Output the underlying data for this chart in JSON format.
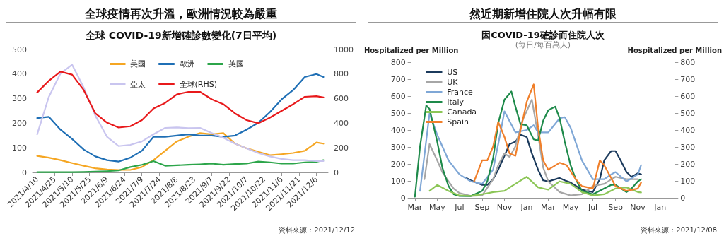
{
  "chart_data": [
    {
      "type": "line",
      "title": "全球疫情再次升溫，歐洲情況較為嚴重",
      "subtitle": "全球 COVID-19新增確診數變化(7日平均)",
      "annotations": [
        "資料來源：2021/12/12"
      ],
      "legend": "top",
      "xlim": [
        "2021-04-06",
        "2021-12-16"
      ],
      "xticks": [
        {
          "value": "2021-04-10",
          "label": "2021/4/10"
        },
        {
          "value": "2021-04-25",
          "label": "2021/4/25"
        },
        {
          "value": "2021-05-10",
          "label": "2021/5/10"
        },
        {
          "value": "2021-05-25",
          "label": "2021/5/25"
        },
        {
          "value": "2021-06-09",
          "label": "2021/6/9"
        },
        {
          "value": "2021-06-24",
          "label": "2021/6/24"
        },
        {
          "value": "2021-07-09",
          "label": "2021/7/9"
        },
        {
          "value": "2021-07-24",
          "label": "2021/7/24"
        },
        {
          "value": "2021-08-08",
          "label": "2021/8/8"
        },
        {
          "value": "2021-08-23",
          "label": "2021/8/23"
        },
        {
          "value": "2021-09-07",
          "label": "2021/9/7"
        },
        {
          "value": "2021-09-22",
          "label": "2021/9/22"
        },
        {
          "value": "2021-10-07",
          "label": "2021/10/7"
        },
        {
          "value": "2021-10-22",
          "label": "2021/10/22"
        },
        {
          "value": "2021-11-06",
          "label": "2021/11/6"
        },
        {
          "value": "2021-11-21",
          "label": "2021/11/21"
        },
        {
          "value": "2021-12-06",
          "label": "2021/12/6"
        }
      ],
      "ylim": [
        0,
        500
      ],
      "yticks": [
        0,
        100,
        200,
        300,
        400,
        500
      ],
      "y2lim": [
        0,
        1000
      ],
      "y2ticks": [
        0,
        200,
        400,
        600,
        800,
        1000
      ],
      "x": [
        "2021-04-10",
        "2021-04-20",
        "2021-04-30",
        "2021-05-10",
        "2021-05-20",
        "2021-05-30",
        "2021-06-09",
        "2021-06-19",
        "2021-06-29",
        "2021-07-09",
        "2021-07-19",
        "2021-07-29",
        "2021-08-08",
        "2021-08-18",
        "2021-08-28",
        "2021-09-07",
        "2021-09-17",
        "2021-09-27",
        "2021-10-07",
        "2021-10-17",
        "2021-10-27",
        "2021-11-06",
        "2021-11-16",
        "2021-11-26",
        "2021-12-06",
        "2021-12-12"
      ],
      "series": [
        {
          "name": "美國",
          "color": "#f5a623",
          "values": [
            67,
            60,
            50,
            38,
            27,
            17,
            12,
            10,
            10,
            22,
            50,
            88,
            126,
            145,
            160,
            155,
            160,
            117,
            98,
            84,
            70,
            74,
            79,
            88,
            122,
            117
          ]
        },
        {
          "name": "歐洲",
          "color": "#1f6fb5",
          "values": [
            221,
            226,
            174,
            136,
            93,
            65,
            50,
            44,
            60,
            88,
            145,
            145,
            150,
            155,
            150,
            150,
            145,
            150,
            174,
            202,
            245,
            297,
            335,
            388,
            400,
            388
          ]
        },
        {
          "name": "英國",
          "color": "#2ca54a",
          "values": [
            1,
            1,
            1,
            1,
            2,
            3,
            5,
            8,
            22,
            31,
            46,
            27,
            29,
            31,
            33,
            36,
            31,
            34,
            36,
            44,
            41,
            36,
            36,
            41,
            43,
            50
          ]
        },
        {
          "name": "亞太",
          "color": "#c9c5ef",
          "values": [
            155,
            307,
            402,
            438,
            345,
            231,
            145,
            107,
            112,
            126,
            155,
            181,
            183,
            180,
            181,
            160,
            141,
            117,
            98,
            79,
            65,
            55,
            50,
            50,
            46,
            46
          ]
        },
        {
          "name": "全球(RHS)",
          "color": "#e8191b",
          "axis": "y2",
          "values": [
            650,
            745,
            820,
            795,
            670,
            480,
            405,
            365,
            375,
            425,
            520,
            565,
            635,
            655,
            655,
            595,
            555,
            480,
            425,
            400,
            445,
            500,
            555,
            615,
            620,
            610
          ]
        }
      ]
    },
    {
      "type": "line",
      "title": "然近期新增住院人次升幅有限",
      "subtitle": "因COVID-19確診而住院人次",
      "annotations": [
        "(每日/每百萬人)",
        "資料來源：2021/12/08"
      ],
      "ylabel": "Hospitalized per Million",
      "y2label": "Hospitalized per Million",
      "legend": "top left",
      "xlim": [
        "2020-02-20",
        "2022-02-10"
      ],
      "xticks": [
        {
          "value": "2020-03-01",
          "label": "Mar"
        },
        {
          "value": "2020-05-01",
          "label": "May"
        },
        {
          "value": "2020-07-01",
          "label": "Jul"
        },
        {
          "value": "2020-09-01",
          "label": "Sep"
        },
        {
          "value": "2020-11-01",
          "label": "Nov"
        },
        {
          "value": "2021-01-01",
          "label": "Jan"
        },
        {
          "value": "2021-03-01",
          "label": "Mar"
        },
        {
          "value": "2021-05-01",
          "label": "May"
        },
        {
          "value": "2021-07-01",
          "label": "Jul"
        },
        {
          "value": "2021-09-01",
          "label": "Sep"
        },
        {
          "value": "2021-11-01",
          "label": "Nov"
        },
        {
          "value": "2022-01-01",
          "label": "Jan"
        }
      ],
      "ylim": [
        0,
        800
      ],
      "yticks": [
        0,
        100,
        200,
        300,
        400,
        500,
        600,
        700,
        800
      ],
      "y2lim": [
        0,
        800
      ],
      "y2ticks": [
        0,
        100,
        200,
        300,
        400,
        500,
        600,
        700,
        800
      ],
      "series": [
        {
          "name": "US",
          "color": "#1b3a5c",
          "x": [
            "2020-07-20",
            "2020-08-01",
            "2020-09-01",
            "2020-09-15",
            "2020-10-01",
            "2020-10-15",
            "2020-11-01",
            "2020-11-15",
            "2020-12-01",
            "2020-12-15",
            "2021-01-01",
            "2021-01-15",
            "2021-02-01",
            "2021-02-15",
            "2021-03-01",
            "2021-04-01",
            "2021-04-15",
            "2021-05-01",
            "2021-06-01",
            "2021-07-01",
            "2021-07-20",
            "2021-08-01",
            "2021-08-20",
            "2021-09-01",
            "2021-09-15",
            "2021-10-01",
            "2021-10-15",
            "2021-11-01",
            "2021-11-10"
          ],
          "values": [
            117,
            103,
            76,
            76,
            110,
            166,
            248,
            317,
            331,
            372,
            359,
            262,
            166,
            103,
            97,
            117,
            103,
            90,
            48,
            34,
            110,
            221,
            276,
            276,
            221,
            152,
            124,
            145,
            138
          ]
        },
        {
          "name": "UK",
          "color": "#a6a6a6",
          "x": [
            "2020-03-27",
            "2020-04-10",
            "2020-05-01",
            "2020-05-15",
            "2020-06-01",
            "2020-06-15",
            "2020-07-01",
            "2020-08-01",
            "2020-09-01",
            "2020-10-01",
            "2020-10-15",
            "2020-11-01",
            "2020-11-15",
            "2020-12-01",
            "2020-12-20",
            "2021-01-15",
            "2021-02-01",
            "2021-02-15",
            "2021-03-01",
            "2021-04-01",
            "2021-05-01",
            "2021-06-01",
            "2021-07-01",
            "2021-08-01",
            "2021-09-01",
            "2021-10-01",
            "2021-11-01"
          ],
          "values": [
            110,
            317,
            221,
            152,
            97,
            55,
            28,
            11,
            14,
            110,
            193,
            262,
            241,
            303,
            455,
            579,
            372,
            179,
            97,
            34,
            14,
            21,
            69,
            83,
            124,
            110,
            110
          ]
        },
        {
          "name": "France",
          "color": "#7fa7d6",
          "x": [
            "2020-03-15",
            "2020-04-10",
            "2020-05-01",
            "2020-06-01",
            "2020-07-01",
            "2020-08-01",
            "2020-09-01",
            "2020-10-01",
            "2020-10-20",
            "2020-11-01",
            "2020-12-01",
            "2021-01-01",
            "2021-01-20",
            "2021-02-01",
            "2021-03-01",
            "2021-04-01",
            "2021-04-15",
            "2021-05-01",
            "2021-06-01",
            "2021-07-01",
            "2021-08-01",
            "2021-08-20",
            "2021-09-01",
            "2021-10-01",
            "2021-11-01",
            "2021-11-10"
          ],
          "values": [
            41,
            497,
            372,
            221,
            138,
            97,
            83,
            166,
            372,
            510,
            386,
            400,
            428,
            386,
            386,
            469,
            476,
            414,
            221,
            110,
            110,
            138,
            152,
            97,
            138,
            193
          ]
        },
        {
          "name": "Italy",
          "color": "#1e8a4a",
          "x": [
            "2020-03-01",
            "2020-03-15",
            "2020-04-01",
            "2020-04-10",
            "2020-05-01",
            "2020-05-15",
            "2020-06-01",
            "2020-06-15",
            "2020-07-01",
            "2020-08-01",
            "2020-09-01",
            "2020-09-15",
            "2020-10-01",
            "2020-10-15",
            "2020-11-01",
            "2020-11-20",
            "2020-12-01",
            "2020-12-15",
            "2021-01-01",
            "2021-01-20",
            "2021-02-01",
            "2021-02-15",
            "2021-03-01",
            "2021-03-20",
            "2021-04-01",
            "2021-04-15",
            "2021-05-01",
            "2021-05-15",
            "2021-06-01",
            "2021-07-01",
            "2021-08-01",
            "2021-08-20",
            "2021-09-01",
            "2021-10-01",
            "2021-10-15",
            "2021-11-01",
            "2021-11-10"
          ],
          "values": [
            7,
            303,
            545,
            524,
            331,
            179,
            69,
            21,
            11,
            10,
            41,
            97,
            234,
            441,
            579,
            627,
            538,
            434,
            428,
            345,
            338,
            455,
            517,
            538,
            469,
            331,
            193,
            110,
            41,
            21,
            55,
            76,
            76,
            34,
            55,
            97,
            110
          ]
        },
        {
          "name": "Canada",
          "color": "#8cc657",
          "x": [
            "2020-04-10",
            "2020-05-01",
            "2020-06-01",
            "2020-07-01",
            "2020-08-01",
            "2020-09-01",
            "2020-10-01",
            "2020-11-01",
            "2020-12-01",
            "2021-01-01",
            "2021-02-01",
            "2021-03-01",
            "2021-04-01",
            "2021-05-01",
            "2021-06-01",
            "2021-07-01",
            "2021-08-01",
            "2021-09-01",
            "2021-10-01",
            "2021-11-01",
            "2021-11-10"
          ],
          "values": [
            41,
            76,
            41,
            14,
            11,
            21,
            34,
            41,
            83,
            124,
            62,
            48,
            97,
            83,
            34,
            14,
            21,
            55,
            62,
            34,
            32
          ]
        },
        {
          "name": "Spain",
          "color": "#f07f2a",
          "x": [
            "2020-08-10",
            "2020-09-01",
            "2020-09-15",
            "2020-10-01",
            "2020-10-15",
            "2020-11-01",
            "2020-11-15",
            "2020-12-01",
            "2020-12-15",
            "2021-01-01",
            "2021-01-20",
            "2021-02-01",
            "2021-02-15",
            "2021-03-01",
            "2021-04-01",
            "2021-04-20",
            "2021-05-15",
            "2021-06-01",
            "2021-07-01",
            "2021-07-20",
            "2021-08-01",
            "2021-09-01",
            "2021-10-01",
            "2021-11-01",
            "2021-11-10"
          ],
          "values": [
            97,
            221,
            221,
            303,
            448,
            359,
            262,
            248,
            400,
            566,
            669,
            414,
            221,
            166,
            207,
            193,
            110,
            69,
            55,
            221,
            193,
            69,
            41,
            55,
            90
          ]
        }
      ]
    }
  ]
}
